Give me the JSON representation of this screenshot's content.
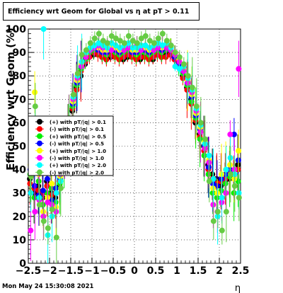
{
  "title": "Efficiency wrt Geom for Global vs   η at pT > 0.11",
  "timestamp": "Mon May 24 15:30:08 2021",
  "chart_data": {
    "type": "scatter",
    "title": "Efficiency wrt Geom for Global vs   η at pT > 0.11",
    "xlabel": "η",
    "ylabel": "Efficiency wrt Geom (%)",
    "xlim": [
      -2.5,
      2.5
    ],
    "ylim": [
      0,
      100
    ],
    "x_ticks": [
      "−2.5",
      "−2",
      "−1.5",
      "−1",
      "−0.5",
      "0",
      "0.5",
      "1",
      "1.5",
      "2",
      "2.5"
    ],
    "y_ticks": [
      "0",
      "10",
      "20",
      "30",
      "40",
      "50",
      "60",
      "70",
      "80",
      "90",
      "100"
    ],
    "grid": true,
    "legend_position": "left-middle",
    "x": [
      -2.45,
      -2.35,
      -2.25,
      -2.15,
      -2.05,
      -1.95,
      -1.85,
      -1.75,
      -1.65,
      -1.55,
      -1.45,
      -1.35,
      -1.25,
      -1.15,
      -1.05,
      -0.95,
      -0.85,
      -0.75,
      -0.65,
      -0.55,
      -0.45,
      -0.35,
      -0.25,
      -0.15,
      -0.05,
      0.05,
      0.15,
      0.25,
      0.35,
      0.45,
      0.55,
      0.65,
      0.75,
      0.85,
      0.95,
      1.05,
      1.15,
      1.25,
      1.35,
      1.45,
      1.55,
      1.65,
      1.75,
      1.85,
      1.95,
      2.05,
      2.15,
      2.25,
      2.35,
      2.45
    ],
    "series": [
      {
        "name": "(+) with pT/|q| > 0.1",
        "color": "#000000",
        "values": [
          36,
          30,
          33,
          28,
          35,
          30,
          28,
          33,
          45,
          55,
          65,
          75,
          80,
          85,
          88,
          89,
          90,
          88,
          87,
          88,
          89,
          88,
          87,
          88,
          89,
          88,
          87,
          89,
          88,
          87,
          89,
          88,
          89,
          90,
          88,
          86,
          80,
          75,
          70,
          60,
          55,
          50,
          42,
          38,
          36,
          33,
          35,
          36,
          38,
          42
        ]
      },
      {
        "name": "(-) with pT/|q| > 0.1",
        "color": "#ff0000",
        "values": [
          34,
          32,
          31,
          30,
          33,
          29,
          30,
          35,
          46,
          56,
          66,
          74,
          82,
          86,
          88,
          90,
          89,
          88,
          87,
          89,
          88,
          87,
          88,
          89,
          88,
          87,
          88,
          88,
          87,
          88,
          89,
          88,
          88,
          89,
          87,
          85,
          79,
          74,
          68,
          61,
          54,
          48,
          40,
          36,
          34,
          35,
          36,
          38,
          37,
          40
        ]
      },
      {
        "name": "(+) with pT/|q| > 0.5",
        "color": "#00ee00",
        "values": [
          38,
          28,
          35,
          25,
          30,
          32,
          26,
          34,
          44,
          57,
          67,
          76,
          83,
          87,
          90,
          91,
          92,
          90,
          89,
          91,
          90,
          89,
          90,
          91,
          90,
          89,
          90,
          90,
          89,
          90,
          91,
          90,
          91,
          92,
          89,
          84,
          81,
          76,
          69,
          62,
          53,
          46,
          38,
          30,
          28,
          31,
          34,
          37,
          30,
          35
        ]
      },
      {
        "name": "(-) with pT/|q| > 0.5",
        "color": "#0000ff",
        "values": [
          40,
          33,
          29,
          31,
          36,
          27,
          32,
          36,
          47,
          58,
          68,
          77,
          84,
          88,
          91,
          92,
          91,
          90,
          90,
          92,
          91,
          90,
          91,
          92,
          90,
          90,
          91,
          91,
          90,
          91,
          92,
          91,
          92,
          91,
          88,
          85,
          82,
          77,
          71,
          63,
          57,
          50,
          41,
          34,
          33,
          36,
          38,
          40,
          55,
          44
        ]
      },
      {
        "name": "(+) with pT/|q| > 1.0",
        "color": "#ffff00",
        "values": [
          42,
          73,
          38,
          22,
          28,
          34,
          24,
          37,
          48,
          59,
          69,
          78,
          85,
          89,
          92,
          93,
          92,
          91,
          91,
          93,
          92,
          91,
          92,
          93,
          91,
          91,
          92,
          92,
          91,
          92,
          93,
          92,
          93,
          93,
          90,
          87,
          83,
          78,
          72,
          64,
          58,
          52,
          44,
          32,
          30,
          38,
          40,
          42,
          36,
          48
        ]
      },
      {
        "name": "(-) with pT/|q| > 1.0",
        "color": "#ff00ff",
        "values": [
          14,
          22,
          27,
          20,
          26,
          25,
          22,
          38,
          49,
          60,
          70,
          79,
          84,
          88,
          91,
          92,
          93,
          92,
          92,
          91,
          93,
          92,
          91,
          92,
          92,
          93,
          91,
          93,
          92,
          91,
          92,
          93,
          92,
          91,
          89,
          86,
          82,
          77,
          73,
          65,
          56,
          49,
          43,
          25,
          22,
          26,
          30,
          55,
          40,
          83
        ]
      },
      {
        "name": "(+) with pT/|q| > 2.0",
        "color": "#00ffff",
        "values": [
          30,
          60,
          28,
          100,
          12,
          20,
          30,
          35,
          50,
          61,
          71,
          80,
          86,
          90,
          92,
          93,
          94,
          93,
          92,
          94,
          93,
          92,
          93,
          94,
          92,
          92,
          93,
          93,
          92,
          93,
          94,
          93,
          94,
          92,
          84,
          83,
          84,
          79,
          74,
          66,
          59,
          51,
          46,
          36,
          20,
          28,
          40,
          45,
          38,
          30
        ]
      },
      {
        "name": "(-) with pT/|q| > 2.0",
        "color": "#66cc44",
        "values": [
          37,
          67,
          25,
          18,
          15,
          23,
          11,
          32,
          51,
          62,
          72,
          81,
          89,
          91,
          94,
          96,
          98,
          95,
          94,
          97,
          96,
          95,
          94,
          97,
          95,
          94,
          96,
          97,
          95,
          94,
          96,
          98,
          95,
          93,
          90,
          88,
          85,
          80,
          75,
          67,
          60,
          53,
          35,
          18,
          22,
          14,
          22,
          38,
          33,
          28
        ]
      }
    ]
  }
}
